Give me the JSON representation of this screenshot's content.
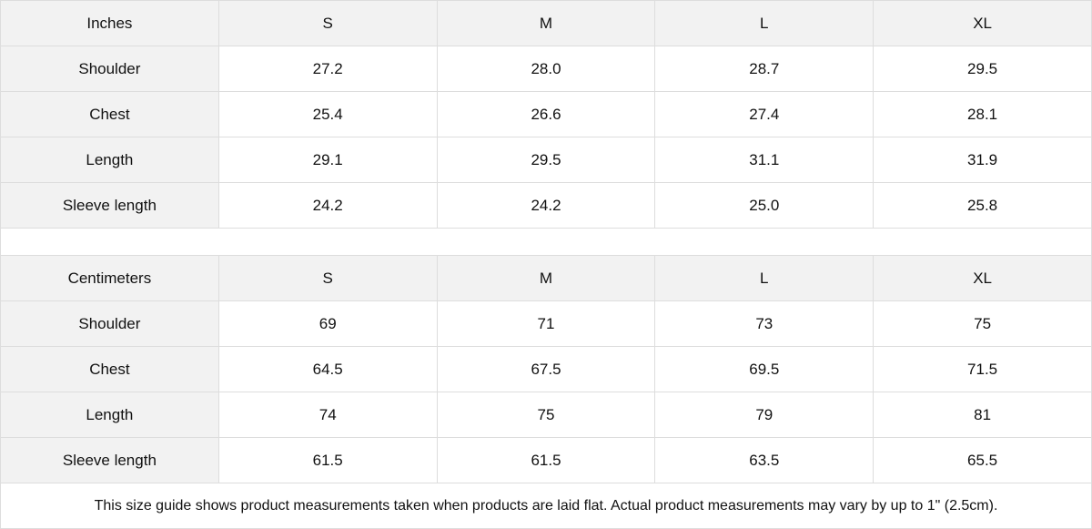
{
  "tables": [
    {
      "unit": "Inches",
      "sizes": [
        "S",
        "M",
        "L",
        "XL"
      ],
      "rows": [
        {
          "label": "Shoulder",
          "values": [
            "27.2",
            "28.0",
            "28.7",
            "29.5"
          ]
        },
        {
          "label": "Chest",
          "values": [
            "25.4",
            "26.6",
            "27.4",
            "28.1"
          ]
        },
        {
          "label": "Length",
          "values": [
            "29.1",
            "29.5",
            "31.1",
            "31.9"
          ]
        },
        {
          "label": "Sleeve length",
          "values": [
            "24.2",
            "24.2",
            "25.0",
            "25.8"
          ]
        }
      ]
    },
    {
      "unit": "Centimeters",
      "sizes": [
        "S",
        "M",
        "L",
        "XL"
      ],
      "rows": [
        {
          "label": "Shoulder",
          "values": [
            "69",
            "71",
            "73",
            "75"
          ]
        },
        {
          "label": "Chest",
          "values": [
            "64.5",
            "67.5",
            "69.5",
            "71.5"
          ]
        },
        {
          "label": "Length",
          "values": [
            "74",
            "75",
            "79",
            "81"
          ]
        },
        {
          "label": "Sleeve length",
          "values": [
            "61.5",
            "61.5",
            "63.5",
            "65.5"
          ]
        }
      ]
    }
  ],
  "footnote": "This size guide shows product measurements taken when products are laid flat.  Actual product measurements may vary by up to 1\" (2.5cm)."
}
